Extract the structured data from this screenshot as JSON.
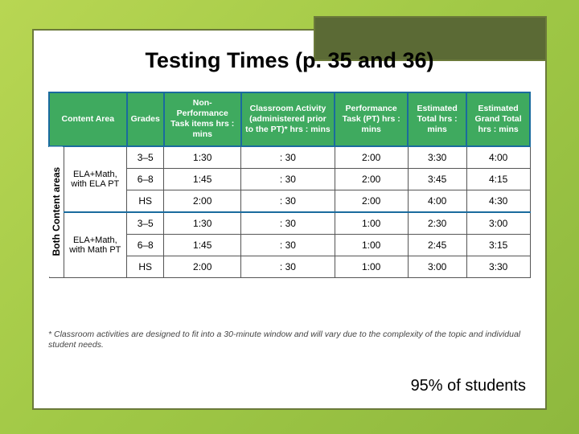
{
  "title": "Testing Times (p. 35 and 36)",
  "table": {
    "headers": {
      "content_area": "Content Area",
      "grades": "Grades",
      "non_pt": "Non-Performance Task items hrs : mins",
      "classroom": "Classroom Activity (administered prior to the PT)* hrs : mins",
      "pt": "Performance Task (PT) hrs : mins",
      "est_total": "Estimated Total hrs : mins",
      "grand_total": "Estimated Grand Total hrs : mins"
    },
    "vertical_label": "Both Content areas",
    "groups": [
      {
        "label": "ELA+Math, with ELA PT",
        "rows": [
          {
            "grades": "3–5",
            "non_pt": "1:30",
            "classroom": ": 30",
            "pt": "2:00",
            "est_total": "3:30",
            "grand_total": "4:00"
          },
          {
            "grades": "6–8",
            "non_pt": "1:45",
            "classroom": ": 30",
            "pt": "2:00",
            "est_total": "3:45",
            "grand_total": "4:15"
          },
          {
            "grades": "HS",
            "non_pt": "2:00",
            "classroom": ": 30",
            "pt": "2:00",
            "est_total": "4:00",
            "grand_total": "4:30"
          }
        ]
      },
      {
        "label": "ELA+Math, with Math PT",
        "rows": [
          {
            "grades": "3–5",
            "non_pt": "1:30",
            "classroom": ": 30",
            "pt": "1:00",
            "est_total": "2:30",
            "grand_total": "3:00"
          },
          {
            "grades": "6–8",
            "non_pt": "1:45",
            "classroom": ": 30",
            "pt": "1:00",
            "est_total": "2:45",
            "grand_total": "3:15"
          },
          {
            "grades": "HS",
            "non_pt": "2:00",
            "classroom": ": 30",
            "pt": "1:00",
            "est_total": "3:00",
            "grand_total": "3:30"
          }
        ]
      }
    ]
  },
  "footnote": "* Classroom activities are designed to fit into a 30-minute window and will vary due to the complexity of the topic and individual student needs.",
  "bottom_text": "95% of students",
  "colors": {
    "header_bg": "#3faa5f",
    "header_border": "#1a6b9e",
    "frame_border": "#6b7a3a",
    "corner_bg": "#5b6a35"
  }
}
